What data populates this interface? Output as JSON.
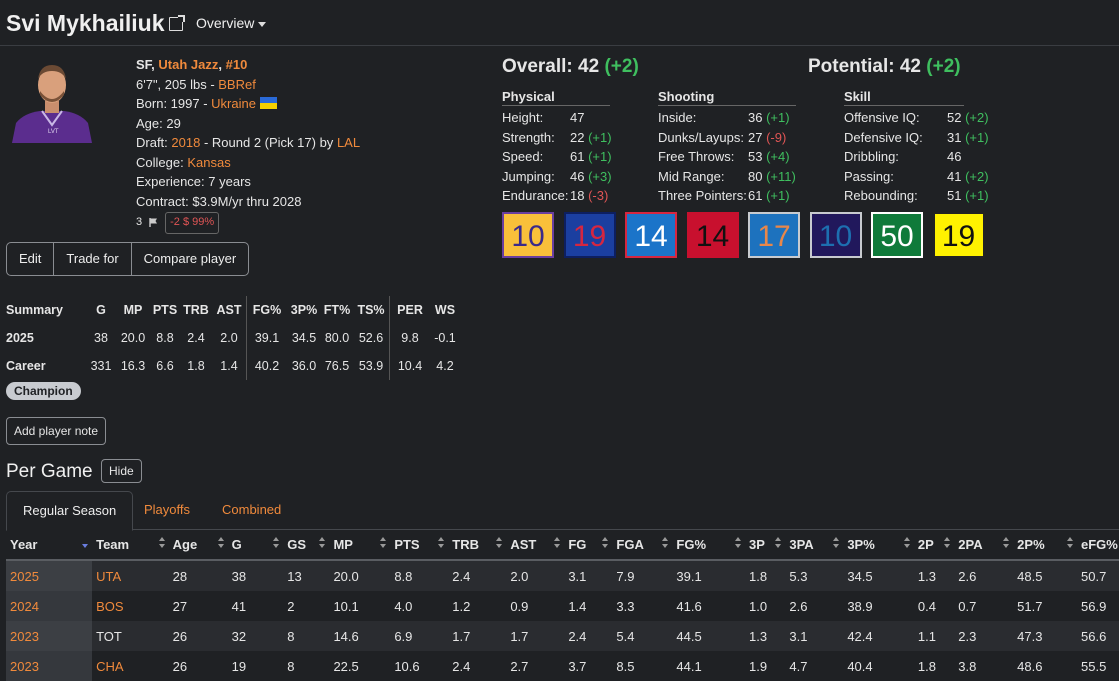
{
  "header": {
    "player_name": "Svi Mykhailiuk",
    "overview_label": "Overview"
  },
  "bio": {
    "position": "SF",
    "team": "Utah Jazz",
    "number": "#10",
    "height_weight": "6'7\", 205 lbs",
    "bbref": "BBRef",
    "born": "Born: 1997",
    "country": "Ukraine",
    "age": "Age: 29",
    "draft_prefix": "Draft:",
    "draft_year": "2018",
    "draft_round": "Round 2 (Pick 17) by",
    "draft_team": "LAL",
    "college_prefix": "College:",
    "college": "Kansas",
    "experience": "Experience: 7 years",
    "contract": "Contract: $3.9M/yr thru 2028",
    "mini_count": "3",
    "mini_pill": "-2 $ 99%"
  },
  "actions": {
    "edit": "Edit",
    "trade": "Trade for",
    "compare": "Compare player",
    "champion": "Champion",
    "add_note": "Add player note",
    "hide": "Hide"
  },
  "summary": {
    "headers": [
      "Summary",
      "G",
      "MP",
      "PTS",
      "TRB",
      "AST",
      "FG%",
      "3P%",
      "FT%",
      "TS%",
      "PER",
      "WS"
    ],
    "rows": [
      [
        "2025",
        "38",
        "20.0",
        "8.8",
        "2.4",
        "2.0",
        "39.1",
        "34.5",
        "80.0",
        "52.6",
        "9.8",
        "-0.1"
      ],
      [
        "Career",
        "331",
        "16.3",
        "6.6",
        "1.8",
        "1.4",
        "40.2",
        "36.0",
        "76.5",
        "53.9",
        "10.4",
        "4.2"
      ]
    ]
  },
  "ratings": {
    "overall_label": "Overall: 42",
    "overall_delta": "(+2)",
    "potential_label": "Potential: 42",
    "potential_delta": "(+2)",
    "groups": [
      {
        "title": "Physical",
        "rows": [
          {
            "label": "Height:",
            "value": "47",
            "delta": ""
          },
          {
            "label": "Strength:",
            "value": "22",
            "delta": "(+1)"
          },
          {
            "label": "Speed:",
            "value": "61",
            "delta": "(+1)"
          },
          {
            "label": "Jumping:",
            "value": "46",
            "delta": "(+3)"
          },
          {
            "label": "Endurance:",
            "value": "18",
            "delta": "(-3)"
          }
        ]
      },
      {
        "title": "Shooting",
        "rows": [
          {
            "label": "Inside:",
            "value": "36",
            "delta": "(+1)"
          },
          {
            "label": "Dunks/Layups:",
            "value": "27",
            "delta": "(-9)"
          },
          {
            "label": "Free Throws:",
            "value": "53",
            "delta": "(+4)"
          },
          {
            "label": "Mid Range:",
            "value": "80",
            "delta": "(+11)"
          },
          {
            "label": "Three Pointers:",
            "value": "61",
            "delta": "(+1)"
          }
        ]
      },
      {
        "title": "Skill",
        "rows": [
          {
            "label": "Offensive IQ:",
            "value": "52",
            "delta": "(+2)"
          },
          {
            "label": "Defensive IQ:",
            "value": "31",
            "delta": "(+1)"
          },
          {
            "label": "Dribbling:",
            "value": "46",
            "delta": ""
          },
          {
            "label": "Passing:",
            "value": "41",
            "delta": "(+2)"
          },
          {
            "label": "Rebounding:",
            "value": "51",
            "delta": "(+1)"
          }
        ]
      }
    ],
    "jersey_boxes": [
      {
        "num": "10",
        "bg": "#f9c03a",
        "fg": "#3b2a8a",
        "border": "#6a3fa0"
      },
      {
        "num": "19",
        "bg": "#1b3fa0",
        "fg": "#d62640",
        "border": "#0d1f60"
      },
      {
        "num": "14",
        "bg": "#1b74c9",
        "fg": "#ffffff",
        "border": "#d62640"
      },
      {
        "num": "14",
        "bg": "#c8102e",
        "fg": "#111111",
        "border": "#c8102e"
      },
      {
        "num": "17",
        "bg": "#1d72be",
        "fg": "#e8874a",
        "border": "#c8cbd0"
      },
      {
        "num": "10",
        "bg": "#21185c",
        "fg": "#1d6fb0",
        "border": "#c8cbd0"
      },
      {
        "num": "50",
        "bg": "#0f7a3a",
        "fg": "#ffffff",
        "border": "#ffffff"
      },
      {
        "num": "19",
        "bg": "#fff200",
        "fg": "#111111",
        "border": "#222222"
      }
    ]
  },
  "per_game": {
    "title": "Per Game",
    "tabs": [
      "Regular Season",
      "Playoffs",
      "Combined"
    ],
    "columns": [
      "Year",
      "Team",
      "Age",
      "G",
      "GS",
      "MP",
      "PTS",
      "TRB",
      "AST",
      "FG",
      "FGA",
      "FG%",
      "3P",
      "3PA",
      "3P%",
      "2P",
      "2PA",
      "2P%",
      "eFG%"
    ],
    "rows": [
      [
        "2025",
        "UTA",
        "28",
        "38",
        "13",
        "20.0",
        "8.8",
        "2.4",
        "2.0",
        "3.1",
        "7.9",
        "39.1",
        "1.8",
        "5.3",
        "34.5",
        "1.3",
        "2.6",
        "48.5",
        "50.7"
      ],
      [
        "2024",
        "BOS",
        "27",
        "41",
        "2",
        "10.1",
        "4.0",
        "1.2",
        "0.9",
        "1.4",
        "3.3",
        "41.6",
        "1.0",
        "2.6",
        "38.9",
        "0.4",
        "0.7",
        "51.7",
        "56.9"
      ],
      [
        "2023",
        "TOT",
        "26",
        "32",
        "8",
        "14.6",
        "6.9",
        "1.7",
        "1.7",
        "2.4",
        "5.4",
        "44.5",
        "1.3",
        "3.1",
        "42.4",
        "1.1",
        "2.3",
        "47.3",
        "56.6"
      ],
      [
        "2023",
        "CHA",
        "26",
        "19",
        "8",
        "22.5",
        "10.6",
        "2.4",
        "2.7",
        "3.7",
        "8.5",
        "44.1",
        "1.9",
        "4.7",
        "40.4",
        "1.8",
        "3.8",
        "48.6",
        "55.5"
      ]
    ]
  }
}
